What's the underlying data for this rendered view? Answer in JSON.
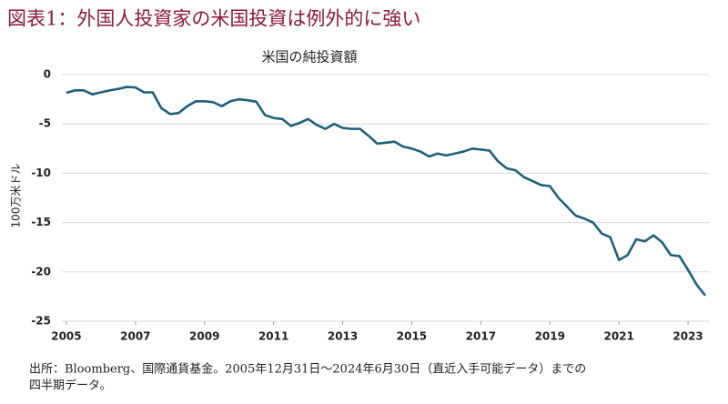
{
  "chart_data": {
    "type": "line",
    "title": "図表1：外国人投資家の米国投資は例外的に強い",
    "subtitle": "米国の純投資額",
    "y_label": "100万米ドル",
    "footnote": [
      "出所：Bloomberg、国際通貨基金。2005年12月31日～2024年6月30日（直近入手可能データ）までの",
      "四半期データ。"
    ],
    "x": [
      2005,
      2005.25,
      2005.5,
      2005.75,
      2006,
      2006.25,
      2006.5,
      2006.75,
      2007,
      2007.25,
      2007.5,
      2007.75,
      2008,
      2008.25,
      2008.5,
      2008.75,
      2009,
      2009.25,
      2009.5,
      2009.75,
      2010,
      2010.25,
      2010.5,
      2010.75,
      2011,
      2011.25,
      2011.5,
      2011.75,
      2012,
      2012.25,
      2012.5,
      2012.75,
      2013,
      2013.25,
      2013.5,
      2013.75,
      2014,
      2014.25,
      2014.5,
      2014.75,
      2015,
      2015.25,
      2015.5,
      2015.75,
      2016,
      2016.25,
      2016.5,
      2016.75,
      2017,
      2017.25,
      2017.5,
      2017.75,
      2018,
      2018.25,
      2018.5,
      2018.75,
      2019,
      2019.25,
      2019.5,
      2019.75,
      2020,
      2020.25,
      2020.5,
      2020.75,
      2021,
      2021.25,
      2021.5,
      2021.75,
      2022,
      2022.25,
      2022.5,
      2022.75,
      2023,
      2023.25,
      2023.5
    ],
    "series": [
      {
        "name": "米国の純投資額",
        "color": "#1f5f7a",
        "values": [
          -1.85,
          -1.6,
          -1.6,
          -2.0,
          -1.8,
          -1.6,
          -1.45,
          -1.25,
          -1.3,
          -1.8,
          -1.8,
          -3.4,
          -4.0,
          -3.9,
          -3.2,
          -2.7,
          -2.7,
          -2.8,
          -3.2,
          -2.7,
          -2.5,
          -2.6,
          -2.75,
          -4.1,
          -4.4,
          -4.5,
          -5.2,
          -4.9,
          -4.5,
          -5.1,
          -5.5,
          -5.0,
          -5.4,
          -5.5,
          -5.5,
          -6.2,
          -7.0,
          -6.9,
          -6.8,
          -7.3,
          -7.5,
          -7.8,
          -8.3,
          -8.0,
          -8.2,
          -8.0,
          -7.8,
          -7.5,
          -7.6,
          -7.7,
          -8.8,
          -9.5,
          -9.7,
          -10.4,
          -10.8,
          -11.2,
          -11.3,
          -12.5,
          -13.4,
          -14.3,
          -14.6,
          -15.0,
          -16.1,
          -16.5,
          -18.8,
          -18.3,
          -16.7,
          -16.9,
          -16.3,
          -17.0,
          -18.3,
          -18.4,
          -19.8,
          -21.3,
          -22.4
        ]
      }
    ],
    "xlim": [
      2004.87,
      2023.63
    ],
    "xticks": [
      2005,
      2007,
      2009,
      2011,
      2013,
      2015,
      2017,
      2019,
      2021,
      2023
    ],
    "ylim": [
      -25,
      0
    ],
    "yticks": [
      0,
      -5,
      -10,
      -15,
      -20,
      -25
    ],
    "grid": true
  }
}
